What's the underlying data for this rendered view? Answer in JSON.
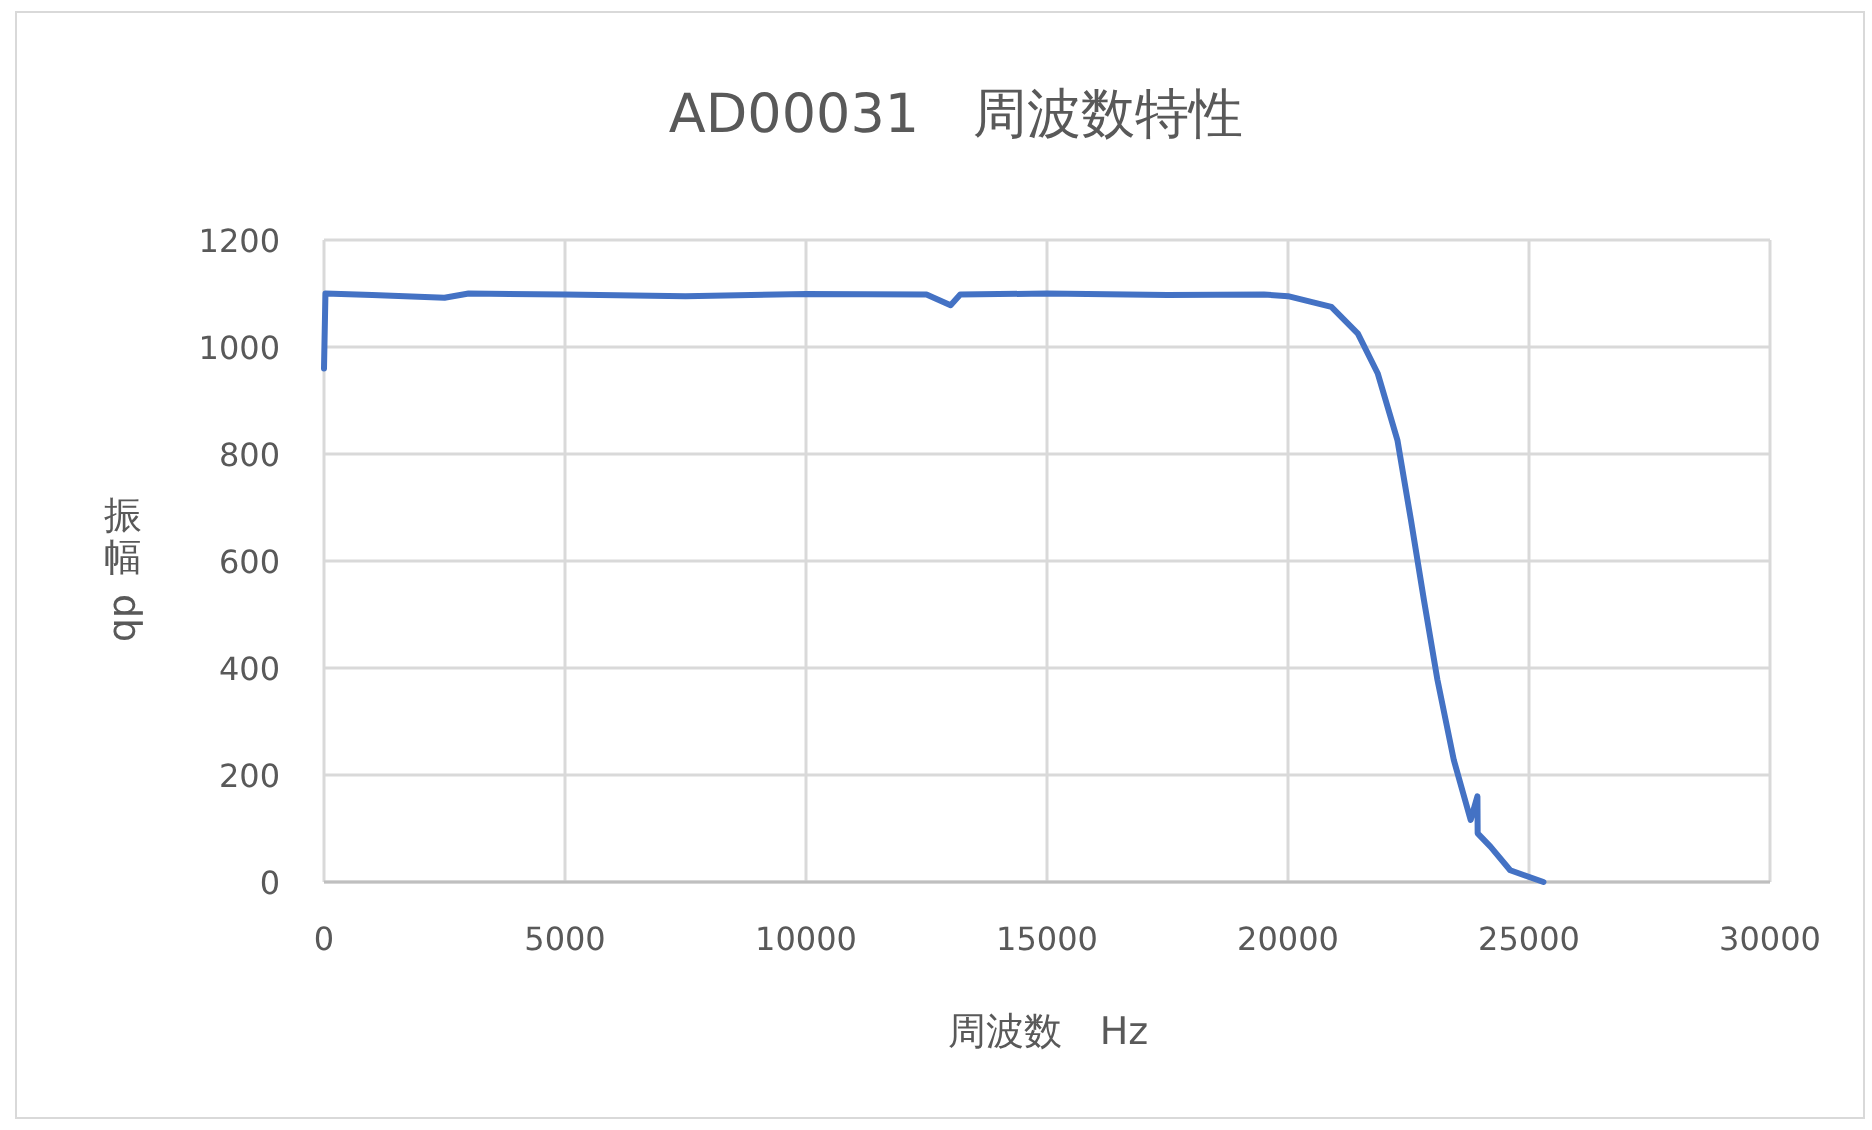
{
  "chart_data": {
    "type": "line",
    "title": "AD00031　周波数特性",
    "xlabel": "周波数　Hz",
    "ylabel": "振幅　db",
    "xlim": [
      0,
      30000
    ],
    "xticks": [
      0,
      5000,
      10000,
      15000,
      20000,
      25000,
      30000
    ],
    "ylim": [
      0,
      1200
    ],
    "yticks": [
      0,
      200,
      400,
      600,
      800,
      1000,
      1200
    ],
    "grid": true,
    "marker": "none",
    "line_style": "solid",
    "series": [
      {
        "color": "#4472c4",
        "x": [
          0,
          30,
          1000,
          2500,
          3000,
          5000,
          7500,
          10000,
          12500,
          13000,
          13200,
          15000,
          17500,
          19500,
          20000,
          20900,
          21450,
          21860,
          22270,
          22550,
          22820,
          23100,
          23440,
          23790,
          23930,
          23935,
          24200,
          24610,
          25300
        ],
        "values": [
          960,
          1100,
          1097,
          1092,
          1100,
          1098,
          1095,
          1099,
          1098,
          1078,
          1098,
          1100,
          1097,
          1098,
          1095,
          1075,
          1025,
          951,
          826,
          677,
          527,
          378,
          228,
          116,
          160,
          91,
          66,
          22,
          0
        ]
      }
    ]
  }
}
